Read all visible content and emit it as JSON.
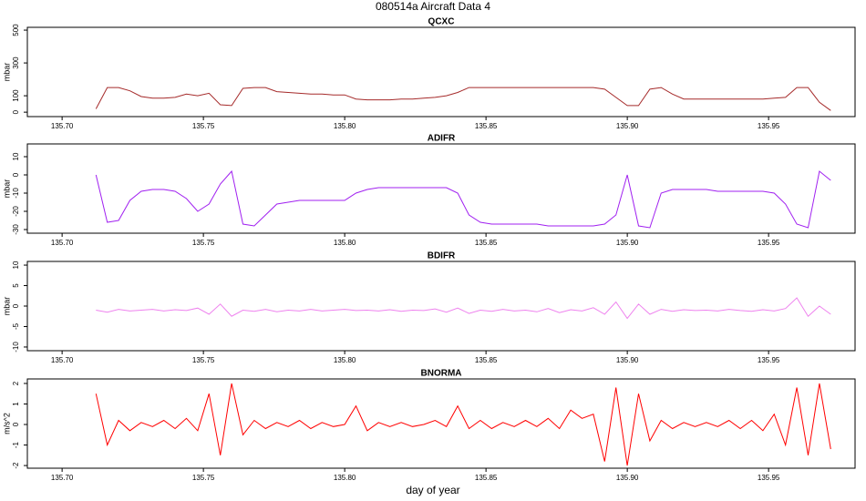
{
  "title": "080514a   Aircraft Data 4",
  "xlabel": "day of year",
  "chart_data": [
    {
      "type": "line",
      "title": "QCXC",
      "ylabel": "mbar",
      "color": "#a52a2a",
      "x": [
        135.712,
        135.716,
        135.72,
        135.724,
        135.728,
        135.732,
        135.736,
        135.74,
        135.744,
        135.748,
        135.752,
        135.756,
        135.76,
        135.764,
        135.768,
        135.772,
        135.776,
        135.78,
        135.784,
        135.788,
        135.792,
        135.796,
        135.8,
        135.804,
        135.808,
        135.812,
        135.816,
        135.82,
        135.824,
        135.828,
        135.832,
        135.836,
        135.84,
        135.844,
        135.848,
        135.852,
        135.856,
        135.86,
        135.864,
        135.868,
        135.872,
        135.876,
        135.88,
        135.884,
        135.888,
        135.892,
        135.896,
        135.9,
        135.904,
        135.908,
        135.912,
        135.916,
        135.92,
        135.924,
        135.928,
        135.932,
        135.936,
        135.94,
        135.944,
        135.948,
        135.952,
        135.956,
        135.96,
        135.964,
        135.968,
        135.972
      ],
      "values": [
        20,
        150,
        150,
        130,
        95,
        85,
        85,
        90,
        110,
        100,
        115,
        45,
        40,
        145,
        150,
        150,
        125,
        120,
        115,
        110,
        110,
        105,
        105,
        80,
        75,
        75,
        75,
        80,
        80,
        85,
        90,
        100,
        120,
        150,
        150,
        150,
        150,
        150,
        150,
        150,
        150,
        150,
        150,
        150,
        150,
        140,
        90,
        40,
        40,
        140,
        150,
        110,
        80,
        80,
        80,
        80,
        80,
        80,
        80,
        80,
        85,
        90,
        150,
        150,
        60,
        10
      ],
      "xlim": [
        135.6877,
        135.9806
      ],
      "ylim": [
        -27,
        517
      ],
      "xticks": [
        {
          "value": 135.7,
          "label": "135.70"
        },
        135.75,
        {
          "value": 135.8,
          "label": "135.80"
        },
        135.85,
        {
          "value": 135.9,
          "label": "135.90"
        },
        135.95
      ],
      "yticks": [
        0,
        100,
        300,
        500
      ]
    },
    {
      "type": "line",
      "title": "ADIFR",
      "ylabel": "mbar",
      "color": "#a020f0",
      "x": [
        135.712,
        135.716,
        135.72,
        135.724,
        135.728,
        135.732,
        135.736,
        135.74,
        135.744,
        135.748,
        135.752,
        135.756,
        135.76,
        135.764,
        135.768,
        135.772,
        135.776,
        135.78,
        135.784,
        135.788,
        135.792,
        135.796,
        135.8,
        135.804,
        135.808,
        135.812,
        135.816,
        135.82,
        135.824,
        135.828,
        135.832,
        135.836,
        135.84,
        135.844,
        135.848,
        135.852,
        135.856,
        135.86,
        135.864,
        135.868,
        135.872,
        135.876,
        135.88,
        135.884,
        135.888,
        135.892,
        135.896,
        135.9,
        135.904,
        135.908,
        135.912,
        135.916,
        135.92,
        135.924,
        135.928,
        135.932,
        135.936,
        135.94,
        135.944,
        135.948,
        135.952,
        135.956,
        135.96,
        135.964,
        135.968,
        135.972
      ],
      "values": [
        0,
        -26,
        -25,
        -14,
        -9,
        -8,
        -8,
        -9,
        -13,
        -20,
        -16,
        -5,
        2,
        -27,
        -28,
        -22,
        -16,
        -15,
        -14,
        -14,
        -14,
        -14,
        -14,
        -10,
        -8,
        -7,
        -7,
        -7,
        -7,
        -7,
        -7,
        -7,
        -10,
        -22,
        -26,
        -27,
        -27,
        -27,
        -27,
        -27,
        -28,
        -28,
        -28,
        -28,
        -28,
        -27,
        -22,
        0,
        -28,
        -29,
        -10,
        -8,
        -8,
        -8,
        -8,
        -9,
        -9,
        -9,
        -9,
        -9,
        -10,
        -16,
        -27,
        -29,
        2,
        -3
      ],
      "xlim": [
        135.6877,
        135.9806
      ],
      "ylim": [
        -32,
        17
      ],
      "xticks": [
        {
          "value": 135.7,
          "label": "135.70"
        },
        135.75,
        {
          "value": 135.8,
          "label": "135.80"
        },
        135.85,
        {
          "value": 135.9,
          "label": "135.90"
        },
        135.95
      ],
      "yticks": [
        -30,
        -20,
        -10,
        0,
        10
      ]
    },
    {
      "type": "line",
      "title": "BDIFR",
      "ylabel": "mbar",
      "color": "#ee82ee",
      "x": [
        135.712,
        135.716,
        135.72,
        135.724,
        135.728,
        135.732,
        135.736,
        135.74,
        135.744,
        135.748,
        135.752,
        135.756,
        135.76,
        135.764,
        135.768,
        135.772,
        135.776,
        135.78,
        135.784,
        135.788,
        135.792,
        135.796,
        135.8,
        135.804,
        135.808,
        135.812,
        135.816,
        135.82,
        135.824,
        135.828,
        135.832,
        135.836,
        135.84,
        135.844,
        135.848,
        135.852,
        135.856,
        135.86,
        135.864,
        135.868,
        135.872,
        135.876,
        135.88,
        135.884,
        135.888,
        135.892,
        135.896,
        135.9,
        135.904,
        135.908,
        135.912,
        135.916,
        135.92,
        135.924,
        135.928,
        135.932,
        135.936,
        135.94,
        135.944,
        135.948,
        135.952,
        135.956,
        135.96,
        135.964,
        135.968,
        135.972
      ],
      "values": [
        -1,
        -1.5,
        -0.8,
        -1.2,
        -1,
        -0.8,
        -1.2,
        -0.9,
        -1.1,
        -0.5,
        -2,
        0.5,
        -2.5,
        -1,
        -1.3,
        -0.8,
        -1.4,
        -1,
        -1.2,
        -0.8,
        -1.2,
        -1,
        -0.8,
        -1.1,
        -1,
        -1.2,
        -0.9,
        -1.3,
        -1,
        -1.1,
        -0.7,
        -1.5,
        -0.5,
        -1.8,
        -1,
        -1.3,
        -0.8,
        -1.2,
        -1,
        -1.4,
        -0.6,
        -1.6,
        -0.9,
        -1.2,
        -0.4,
        -2,
        1,
        -3,
        0.5,
        -2,
        -0.8,
        -1.3,
        -0.9,
        -1.1,
        -1,
        -1.2,
        -0.8,
        -1.1,
        -1.3,
        -0.9,
        -1.2,
        -0.6,
        2,
        -2.5,
        0,
        -2
      ],
      "xlim": [
        135.6877,
        135.9806
      ],
      "ylim": [
        -10.9,
        10.9
      ],
      "xticks": [
        {
          "value": 135.7,
          "label": "135.70"
        },
        135.75,
        {
          "value": 135.8,
          "label": "135.80"
        },
        135.85,
        {
          "value": 135.9,
          "label": "135.90"
        },
        135.95
      ],
      "yticks": [
        -10,
        -5,
        0,
        5,
        10
      ]
    },
    {
      "type": "line",
      "title": "BNORMA",
      "ylabel": "m/s^2",
      "color": "#ff0000",
      "x": [
        135.712,
        135.716,
        135.72,
        135.724,
        135.728,
        135.732,
        135.736,
        135.74,
        135.744,
        135.748,
        135.752,
        135.756,
        135.76,
        135.764,
        135.768,
        135.772,
        135.776,
        135.78,
        135.784,
        135.788,
        135.792,
        135.796,
        135.8,
        135.804,
        135.808,
        135.812,
        135.816,
        135.82,
        135.824,
        135.828,
        135.832,
        135.836,
        135.84,
        135.844,
        135.848,
        135.852,
        135.856,
        135.86,
        135.864,
        135.868,
        135.872,
        135.876,
        135.88,
        135.884,
        135.888,
        135.892,
        135.896,
        135.9,
        135.904,
        135.908,
        135.912,
        135.916,
        135.92,
        135.924,
        135.928,
        135.932,
        135.936,
        135.94,
        135.944,
        135.948,
        135.952,
        135.956,
        135.96,
        135.964,
        135.968,
        135.972
      ],
      "values": [
        1.5,
        -1,
        0.2,
        -0.3,
        0.1,
        -0.1,
        0.2,
        -0.2,
        0.3,
        -0.3,
        1.5,
        -1.5,
        2,
        -0.5,
        0.2,
        -0.2,
        0.1,
        -0.1,
        0.2,
        -0.2,
        0.1,
        -0.1,
        0,
        0.9,
        -0.3,
        0.1,
        -0.1,
        0.1,
        -0.1,
        0,
        0.2,
        -0.1,
        0.9,
        -0.2,
        0.2,
        -0.2,
        0.1,
        -0.1,
        0.2,
        -0.1,
        0.3,
        -0.2,
        0.7,
        0.3,
        0.5,
        -1.8,
        1.8,
        -2,
        1.5,
        -0.8,
        0.2,
        -0.2,
        0.1,
        -0.1,
        0.1,
        -0.1,
        0.2,
        -0.2,
        0.2,
        -0.3,
        0.5,
        -1,
        1.8,
        -1.5,
        2,
        -1.2
      ],
      "xlim": [
        135.6877,
        135.9806
      ],
      "ylim": [
        -2.13,
        2.22
      ],
      "xticks": [
        {
          "value": 135.7,
          "label": "135.70"
        },
        135.75,
        {
          "value": 135.8,
          "label": "135.80"
        },
        135.85,
        {
          "value": 135.9,
          "label": "135.90"
        },
        135.95
      ],
      "yticks": [
        -2,
        -1,
        0,
        1,
        2
      ]
    }
  ]
}
